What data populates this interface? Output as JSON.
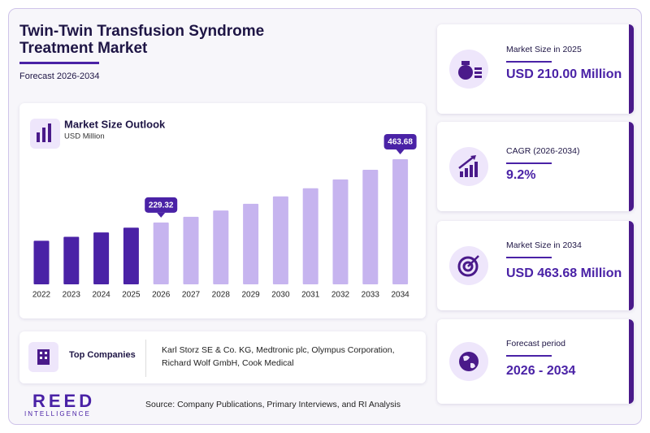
{
  "header": {
    "title_lines": [
      "Twin-Twin Transfusion Syndrome",
      "Treatment Market"
    ],
    "subtitle": "Forecast 2026-2034"
  },
  "chart_data": {
    "type": "bar",
    "title": "Market Size Outlook",
    "subtitle": "USD Million",
    "categories": [
      "2022",
      "2023",
      "2024",
      "2025",
      "2026",
      "2027",
      "2028",
      "2029",
      "2030",
      "2031",
      "2032",
      "2033",
      "2034"
    ],
    "values": [
      161.3,
      176.1,
      192.3,
      210.0,
      229.32,
      250.4,
      273.5,
      298.6,
      326.1,
      356.1,
      388.9,
      424.6,
      463.68
    ],
    "value_labels": [
      null,
      null,
      null,
      null,
      "229.32",
      null,
      null,
      null,
      null,
      null,
      null,
      null,
      "463.68"
    ],
    "colors": [
      "#4a22a6",
      "#4a22a6",
      "#4a22a6",
      "#4a22a6",
      "#c6b4ef",
      "#c6b4ef",
      "#c6b4ef",
      "#c6b4ef",
      "#c6b4ef",
      "#c6b4ef",
      "#c6b4ef",
      "#c6b4ef",
      "#c6b4ef"
    ]
  },
  "top_companies": {
    "label": "Top Companies",
    "text": "Karl Storz SE & Co. KG, Medtronic plc, Olympus Corporation, Richard Wolf GmbH, Cook Medical"
  },
  "cards": [
    {
      "label": "Market Size in 2025",
      "value": "USD 210.00 Million"
    },
    {
      "label": "CAGR (2026-2034)",
      "value": "9.2%"
    },
    {
      "label": "Market Size in 2034",
      "value": "USD 463.68 Million"
    },
    {
      "label": "Forecast period",
      "value": "2026 - 2034"
    }
  ],
  "logo": {
    "name": "REED",
    "tagline": "INTELLIGENCE"
  },
  "source": "Source: Company Publications, Primary Interviews, and RI Analysis"
}
